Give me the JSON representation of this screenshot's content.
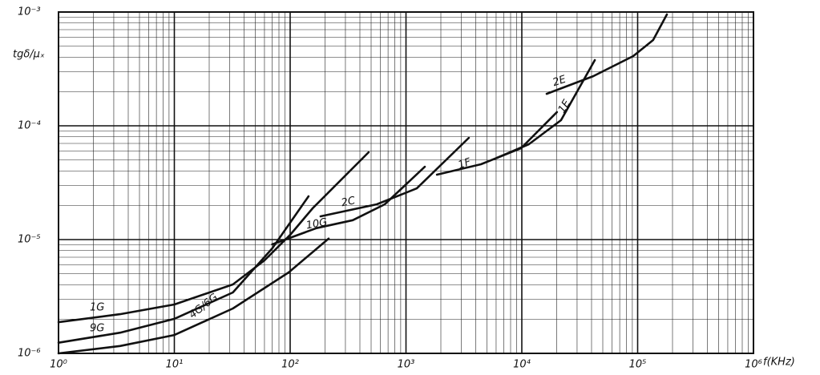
{
  "chart_data": {
    "type": "line",
    "ylabel": "tgδ/μₓ",
    "xlabel": "f(KHz)",
    "xlog": true,
    "ylog": true,
    "grid": true,
    "minor_grid": true,
    "color": "#111111",
    "xlim": [
      1,
      1000000
    ],
    "ylim": [
      1e-06,
      0.001
    ],
    "xticks": [
      {
        "value": 1,
        "label": "10⁰"
      },
      {
        "value": 10,
        "label": "10¹"
      },
      {
        "value": 100,
        "label": "10²"
      },
      {
        "value": 1000,
        "label": "10³"
      },
      {
        "value": 10000,
        "label": "10⁴"
      },
      {
        "value": 100000,
        "label": "10⁵"
      },
      {
        "value": 1000000,
        "label": "10⁶"
      }
    ],
    "yticks": [
      {
        "value": 1e-06,
        "label": "10⁻⁶"
      },
      {
        "value": 1e-05,
        "label": "10⁻⁵"
      },
      {
        "value": 0.0001,
        "label": "10⁻⁴"
      },
      {
        "value": 0.001,
        "label": "10⁻³"
      }
    ],
    "series": [
      {
        "name": "1G",
        "x": [
          1,
          3.4,
          10,
          32,
          60,
          100,
          156,
          476
        ],
        "values": [
          1.88e-06,
          2.21e-06,
          2.69e-06,
          4.03e-06,
          6.56e-06,
          1.1e-05,
          1.88e-05,
          5.86e-05
        ]
      },
      {
        "name": "9G",
        "x": [
          1,
          3.4,
          10,
          32,
          70,
          144
        ],
        "values": [
          1.24e-06,
          1.52e-06,
          2.01e-06,
          3.43e-06,
          8.37e-06,
          2.4e-05
        ]
      },
      {
        "name": "4G/6G",
        "x": [
          1,
          3.4,
          10,
          32,
          97,
          215
        ],
        "values": [
          1e-06,
          1.16e-06,
          1.45e-06,
          2.48e-06,
          5.14e-06,
          1.02e-05
        ]
      },
      {
        "name": "10G",
        "x": [
          70,
          169,
          347,
          656,
          1455
        ],
        "values": [
          9.08e-06,
          1.26e-05,
          1.48e-05,
          2.04e-05,
          4.37e-05
        ]
      },
      {
        "name": "2C",
        "x": [
          183,
          559,
          1240,
          3490
        ],
        "values": [
          1.6e-05,
          2.04e-05,
          2.82e-05,
          7.84e-05
        ]
      },
      {
        "name": "1F",
        "x": [
          1850,
          4440,
          9840,
          20100
        ],
        "values": [
          3.72e-05,
          4.59e-05,
          6.35e-05,
          0.000132
        ]
      },
      {
        "name": "1E",
        "x": [
          6100,
          11500,
          21800,
          42700
        ],
        "values": [
          5.23e-05,
          6.89e-05,
          0.000112,
          0.000378
        ]
      },
      {
        "name": "2E",
        "x": [
          16400,
          41300,
          91600,
          136000,
          179000
        ],
        "values": [
          0.000191,
          0.000273,
          0.00041,
          0.000567,
          0.000953
        ]
      }
    ]
  }
}
